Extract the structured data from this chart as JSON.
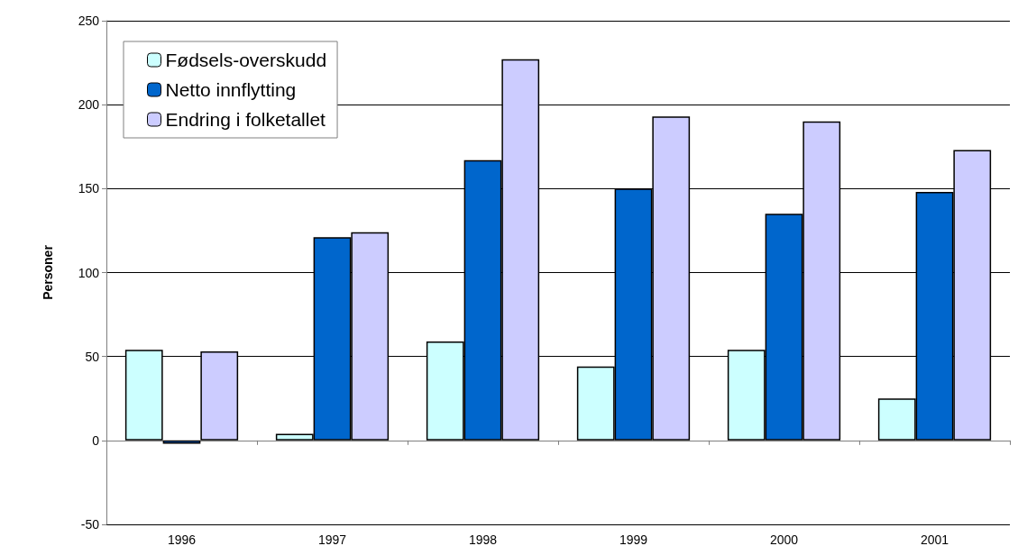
{
  "chart_data": {
    "type": "bar",
    "ylabel": "Personer",
    "categories": [
      "1996",
      "1997",
      "1998",
      "1999",
      "2000",
      "2001"
    ],
    "series": [
      {
        "name": "Fødsels-overskudd",
        "color": "#ccffff",
        "values": [
          54,
          4,
          59,
          44,
          54,
          25
        ]
      },
      {
        "name": "Netto innflytting",
        "color": "#0066cc",
        "values": [
          -2,
          121,
          167,
          150,
          135,
          148
        ]
      },
      {
        "name": "Endring i folketallet",
        "color": "#ccccff",
        "values": [
          53,
          124,
          227,
          193,
          190,
          173
        ]
      }
    ],
    "ylim": [
      -50,
      250
    ],
    "yticks": [
      -50,
      0,
      50,
      100,
      150,
      200,
      250
    ],
    "grid": "y",
    "legend": "top left"
  }
}
